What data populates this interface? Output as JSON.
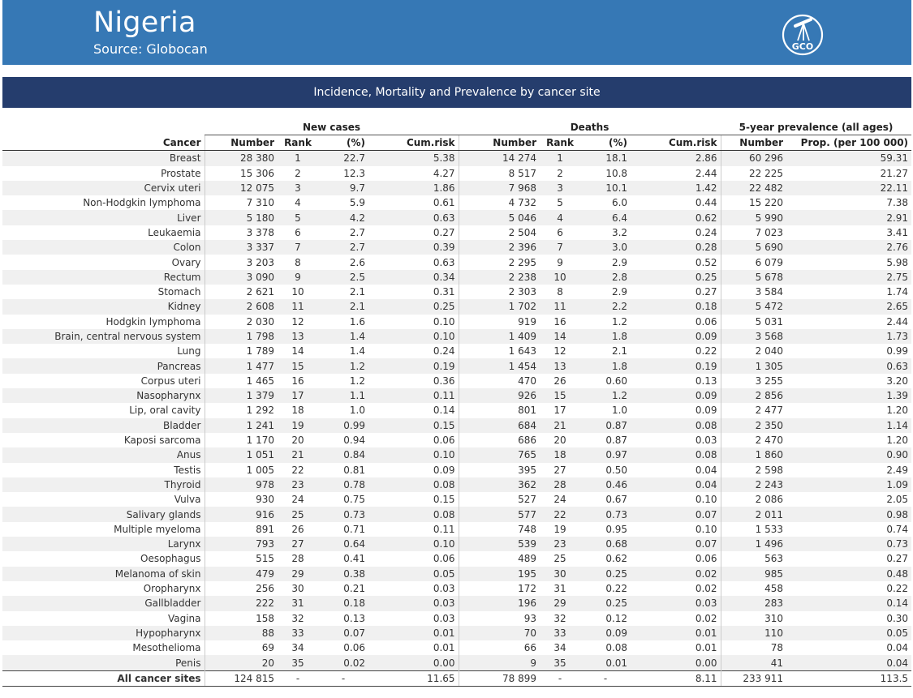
{
  "header": {
    "country": "Nigeria",
    "source": "Source: Globocan",
    "logo_text": "GCO",
    "logo_icon": "telescope-icon",
    "background": "#3678b5"
  },
  "band": {
    "title": "Incidence, Mortality and Prevalence by cancer site",
    "background": "#253d6d"
  },
  "table": {
    "groups": {
      "new_cases": "New cases",
      "deaths": "Deaths",
      "prevalence": "5-year prevalence (all ages)"
    },
    "columns": {
      "cancer": "Cancer",
      "nc_number": "Number",
      "nc_rank": "Rank",
      "nc_pct": "(%)",
      "nc_cumrisk": "Cum.risk",
      "d_number": "Number",
      "d_rank": "Rank",
      "d_pct": "(%)",
      "d_cumrisk": "Cum.risk",
      "p_number": "Number",
      "p_prop": "Prop. (per 100 000)"
    },
    "rows": [
      [
        "Breast",
        "28 380",
        "1",
        "22.7",
        "5.38",
        "14 274",
        "1",
        "18.1",
        "2.86",
        "60 296",
        "59.31"
      ],
      [
        "Prostate",
        "15 306",
        "2",
        "12.3",
        "4.27",
        "8 517",
        "2",
        "10.8",
        "2.44",
        "22 225",
        "21.27"
      ],
      [
        "Cervix uteri",
        "12 075",
        "3",
        "9.7",
        "1.86",
        "7 968",
        "3",
        "10.1",
        "1.42",
        "22 482",
        "22.11"
      ],
      [
        "Non-Hodgkin lymphoma",
        "7 310",
        "4",
        "5.9",
        "0.61",
        "4 732",
        "5",
        "6.0",
        "0.44",
        "15 220",
        "7.38"
      ],
      [
        "Liver",
        "5 180",
        "5",
        "4.2",
        "0.63",
        "5 046",
        "4",
        "6.4",
        "0.62",
        "5 990",
        "2.91"
      ],
      [
        "Leukaemia",
        "3 378",
        "6",
        "2.7",
        "0.27",
        "2 504",
        "6",
        "3.2",
        "0.24",
        "7 023",
        "3.41"
      ],
      [
        "Colon",
        "3 337",
        "7",
        "2.7",
        "0.39",
        "2 396",
        "7",
        "3.0",
        "0.28",
        "5 690",
        "2.76"
      ],
      [
        "Ovary",
        "3 203",
        "8",
        "2.6",
        "0.63",
        "2 295",
        "9",
        "2.9",
        "0.52",
        "6 079",
        "5.98"
      ],
      [
        "Rectum",
        "3 090",
        "9",
        "2.5",
        "0.34",
        "2 238",
        "10",
        "2.8",
        "0.25",
        "5 678",
        "2.75"
      ],
      [
        "Stomach",
        "2 621",
        "10",
        "2.1",
        "0.31",
        "2 303",
        "8",
        "2.9",
        "0.27",
        "3 584",
        "1.74"
      ],
      [
        "Kidney",
        "2 608",
        "11",
        "2.1",
        "0.25",
        "1 702",
        "11",
        "2.2",
        "0.18",
        "5 472",
        "2.65"
      ],
      [
        "Hodgkin lymphoma",
        "2 030",
        "12",
        "1.6",
        "0.10",
        "919",
        "16",
        "1.2",
        "0.06",
        "5 031",
        "2.44"
      ],
      [
        "Brain, central nervous system",
        "1 798",
        "13",
        "1.4",
        "0.10",
        "1 409",
        "14",
        "1.8",
        "0.09",
        "3 568",
        "1.73"
      ],
      [
        "Lung",
        "1 789",
        "14",
        "1.4",
        "0.24",
        "1 643",
        "12",
        "2.1",
        "0.22",
        "2 040",
        "0.99"
      ],
      [
        "Pancreas",
        "1 477",
        "15",
        "1.2",
        "0.19",
        "1 454",
        "13",
        "1.8",
        "0.19",
        "1 305",
        "0.63"
      ],
      [
        "Corpus uteri",
        "1 465",
        "16",
        "1.2",
        "0.36",
        "470",
        "26",
        "0.60",
        "0.13",
        "3 255",
        "3.20"
      ],
      [
        "Nasopharynx",
        "1 379",
        "17",
        "1.1",
        "0.11",
        "926",
        "15",
        "1.2",
        "0.09",
        "2 856",
        "1.39"
      ],
      [
        "Lip, oral cavity",
        "1 292",
        "18",
        "1.0",
        "0.14",
        "801",
        "17",
        "1.0",
        "0.09",
        "2 477",
        "1.20"
      ],
      [
        "Bladder",
        "1 241",
        "19",
        "0.99",
        "0.15",
        "684",
        "21",
        "0.87",
        "0.08",
        "2 350",
        "1.14"
      ],
      [
        "Kaposi sarcoma",
        "1 170",
        "20",
        "0.94",
        "0.06",
        "686",
        "20",
        "0.87",
        "0.03",
        "2 470",
        "1.20"
      ],
      [
        "Anus",
        "1 051",
        "21",
        "0.84",
        "0.10",
        "765",
        "18",
        "0.97",
        "0.08",
        "1 860",
        "0.90"
      ],
      [
        "Testis",
        "1 005",
        "22",
        "0.81",
        "0.09",
        "395",
        "27",
        "0.50",
        "0.04",
        "2 598",
        "2.49"
      ],
      [
        "Thyroid",
        "978",
        "23",
        "0.78",
        "0.08",
        "362",
        "28",
        "0.46",
        "0.04",
        "2 243",
        "1.09"
      ],
      [
        "Vulva",
        "930",
        "24",
        "0.75",
        "0.15",
        "527",
        "24",
        "0.67",
        "0.10",
        "2 086",
        "2.05"
      ],
      [
        "Salivary glands",
        "916",
        "25",
        "0.73",
        "0.08",
        "577",
        "22",
        "0.73",
        "0.07",
        "2 011",
        "0.98"
      ],
      [
        "Multiple myeloma",
        "891",
        "26",
        "0.71",
        "0.11",
        "748",
        "19",
        "0.95",
        "0.10",
        "1 533",
        "0.74"
      ],
      [
        "Larynx",
        "793",
        "27",
        "0.64",
        "0.10",
        "539",
        "23",
        "0.68",
        "0.07",
        "1 496",
        "0.73"
      ],
      [
        "Oesophagus",
        "515",
        "28",
        "0.41",
        "0.06",
        "489",
        "25",
        "0.62",
        "0.06",
        "563",
        "0.27"
      ],
      [
        "Melanoma of skin",
        "479",
        "29",
        "0.38",
        "0.05",
        "195",
        "30",
        "0.25",
        "0.02",
        "985",
        "0.48"
      ],
      [
        "Oropharynx",
        "256",
        "30",
        "0.21",
        "0.03",
        "172",
        "31",
        "0.22",
        "0.02",
        "458",
        "0.22"
      ],
      [
        "Gallbladder",
        "222",
        "31",
        "0.18",
        "0.03",
        "196",
        "29",
        "0.25",
        "0.03",
        "283",
        "0.14"
      ],
      [
        "Vagina",
        "158",
        "32",
        "0.13",
        "0.03",
        "93",
        "32",
        "0.12",
        "0.02",
        "310",
        "0.30"
      ],
      [
        "Hypopharynx",
        "88",
        "33",
        "0.07",
        "0.01",
        "70",
        "33",
        "0.09",
        "0.01",
        "110",
        "0.05"
      ],
      [
        "Mesothelioma",
        "69",
        "34",
        "0.06",
        "0.01",
        "66",
        "34",
        "0.08",
        "0.01",
        "78",
        "0.04"
      ],
      [
        "Penis",
        "20",
        "35",
        "0.02",
        "0.00",
        "9",
        "35",
        "0.01",
        "0.00",
        "41",
        "0.04"
      ]
    ],
    "total": [
      "All cancer sites",
      "124 815",
      "-",
      "-",
      "11.65",
      "78 899",
      "-",
      "-",
      "8.11",
      "233 911",
      "113.5"
    ]
  }
}
